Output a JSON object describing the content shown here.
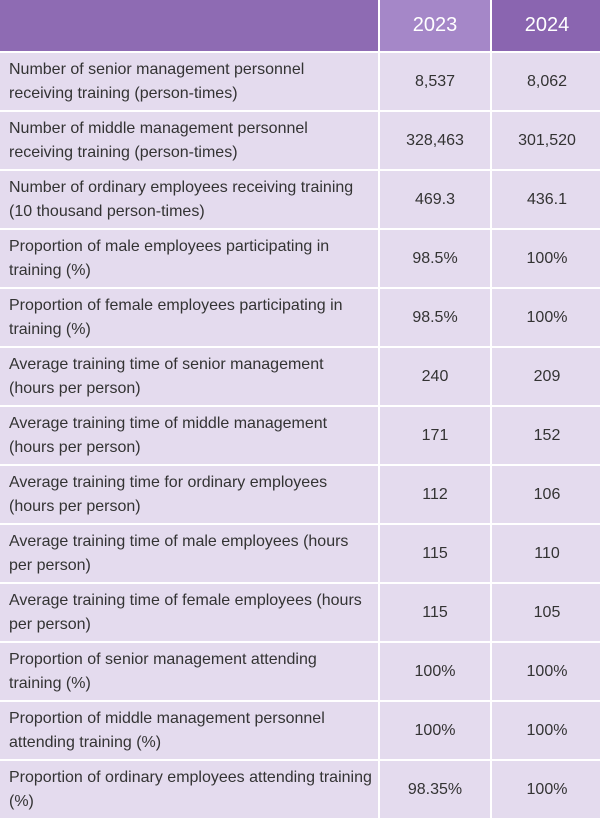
{
  "table": {
    "headers": [
      "",
      "2023",
      "2024"
    ],
    "rows": [
      {
        "label": "Number of senior management personnel receiving training (person-times)",
        "v2023": "8,537",
        "v2024": "8,062"
      },
      {
        "label": "Number of middle management personnel receiving training (person-times)",
        "v2023": "328,463",
        "v2024": "301,520"
      },
      {
        "label": "Number of ordinary employees receiving training (10 thousand person-times)",
        "v2023": "469.3",
        "v2024": "436.1"
      },
      {
        "label": "Proportion of male employees participating in training (%)",
        "v2023": "98.5%",
        "v2024": "100%"
      },
      {
        "label": "Proportion of female employees participating in training (%)",
        "v2023": "98.5%",
        "v2024": "100%"
      },
      {
        "label": "Average training time of senior management (hours per person)",
        "v2023": "240",
        "v2024": "209"
      },
      {
        "label": "Average training time of middle management (hours per person)",
        "v2023": "171",
        "v2024": "152"
      },
      {
        "label": "Average training time for ordinary employees (hours per person)",
        "v2023": "112",
        "v2024": "106"
      },
      {
        "label": "Average training time of male employees (hours per person)",
        "v2023": "115",
        "v2024": "110"
      },
      {
        "label": "Average training time of female employees (hours per person)",
        "v2023": "115",
        "v2024": "105"
      },
      {
        "label": "Proportion of senior management attending training (%)",
        "v2023": "100%",
        "v2024": "100%"
      },
      {
        "label": "Proportion of middle management personnel attending training (%)",
        "v2023": "100%",
        "v2024": "100%"
      },
      {
        "label": "Proportion of ordinary employees attending training (%)",
        "v2023": "98.35%",
        "v2024": "100%"
      }
    ]
  },
  "colors": {
    "header_bg": "#8e6bb3",
    "header_2023_bg": "#a587c8",
    "header_2024_bg": "#8a65b0",
    "row_bg": "#e4dbee",
    "text": "#333333"
  }
}
